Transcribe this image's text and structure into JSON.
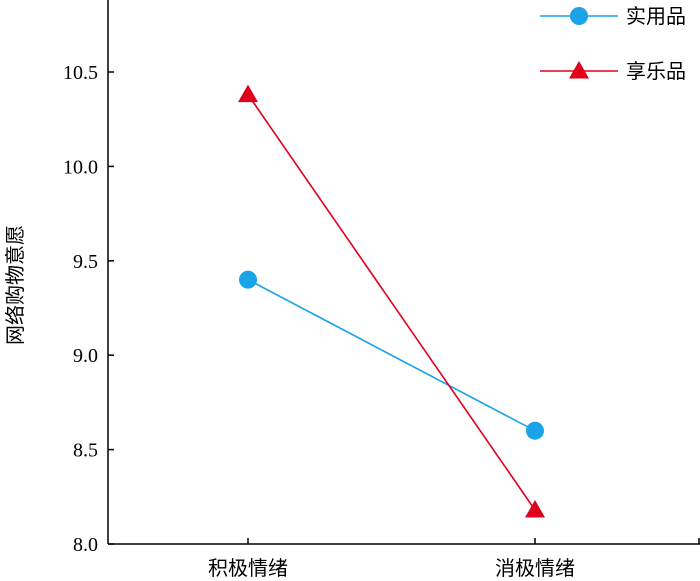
{
  "chart_data": {
    "type": "line",
    "title": "",
    "xlabel": "",
    "ylabel": "网络购物意愿",
    "categories": [
      "积极情绪",
      "消极情绪"
    ],
    "ylim": [
      8.0,
      11.0
    ],
    "yticks": [
      "8.0",
      "8.5",
      "9.0",
      "9.5",
      "10.0",
      "10.5"
    ],
    "grid": false,
    "legend_position": "top-right",
    "series": [
      {
        "name": "实用品",
        "values": [
          9.4,
          8.6
        ],
        "color": "#1aa3e8",
        "marker": "circle"
      },
      {
        "name": "享乐品",
        "values": [
          10.38,
          8.18
        ],
        "color": "#e0001b",
        "marker": "triangle"
      }
    ]
  }
}
